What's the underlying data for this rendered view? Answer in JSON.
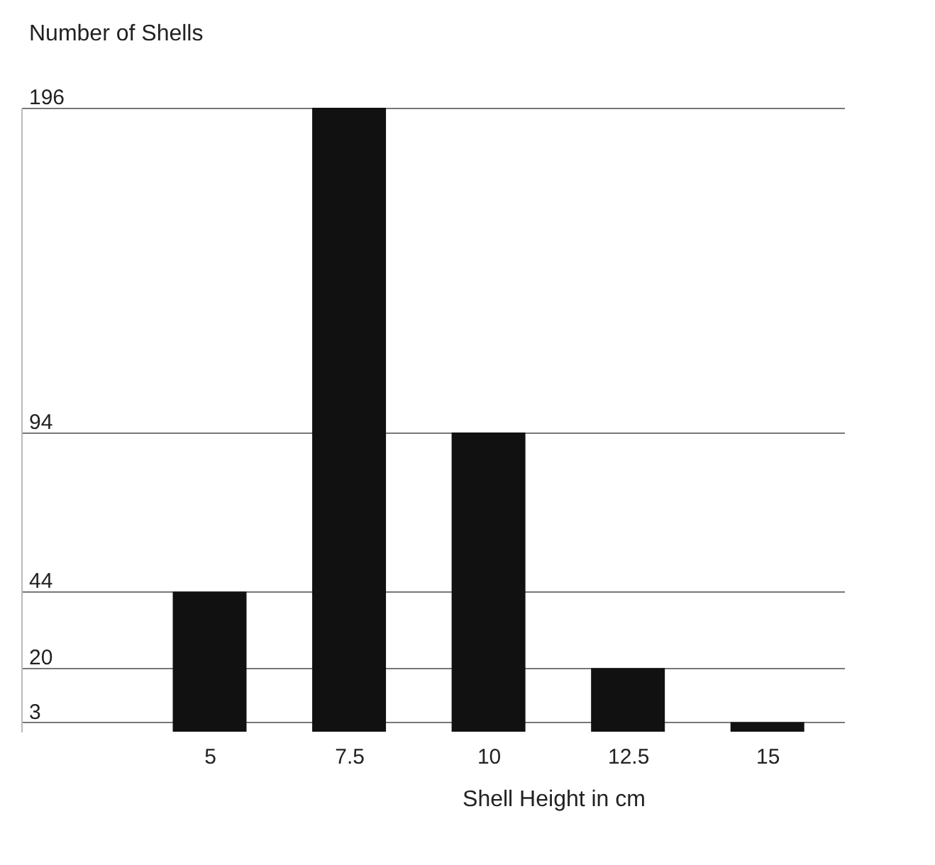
{
  "chart_data": {
    "type": "bar",
    "xlabel": "Shell Height in cm",
    "ylabel": "Number of Shells",
    "categories": [
      "5",
      "7.5",
      "10",
      "12.5",
      "15"
    ],
    "values": [
      44,
      196,
      94,
      20,
      3
    ],
    "color": "#111111",
    "ylim": [
      0,
      196
    ],
    "yticks": [
      3,
      20,
      44,
      94,
      196
    ],
    "grid": "y"
  }
}
